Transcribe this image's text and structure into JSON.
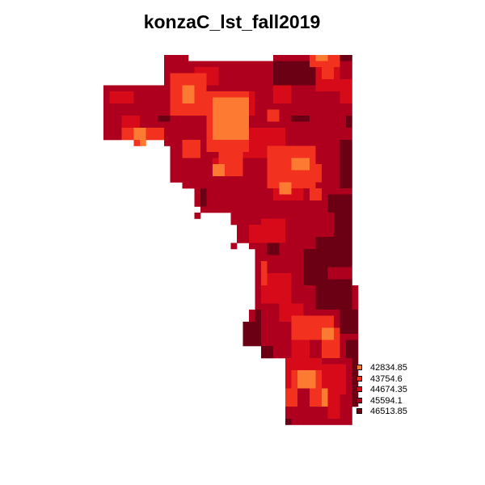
{
  "title": "konzaC_lst_fall2019",
  "colors": {
    "class1": "#fd7a33",
    "class2": "#f2321f",
    "class3": "#d60a18",
    "class4": "#ae001e",
    "class5": "#6b0014"
  },
  "legend": {
    "entries": [
      {
        "label": "42834.85",
        "color": "#fd7a33"
      },
      {
        "label": "43754.6",
        "color": "#f2321f"
      },
      {
        "label": "44674.35",
        "color": "#d60a18"
      },
      {
        "label": "45594.1",
        "color": "#ae001e"
      },
      {
        "label": "46513.85",
        "color": "#6b0014"
      }
    ]
  }
}
